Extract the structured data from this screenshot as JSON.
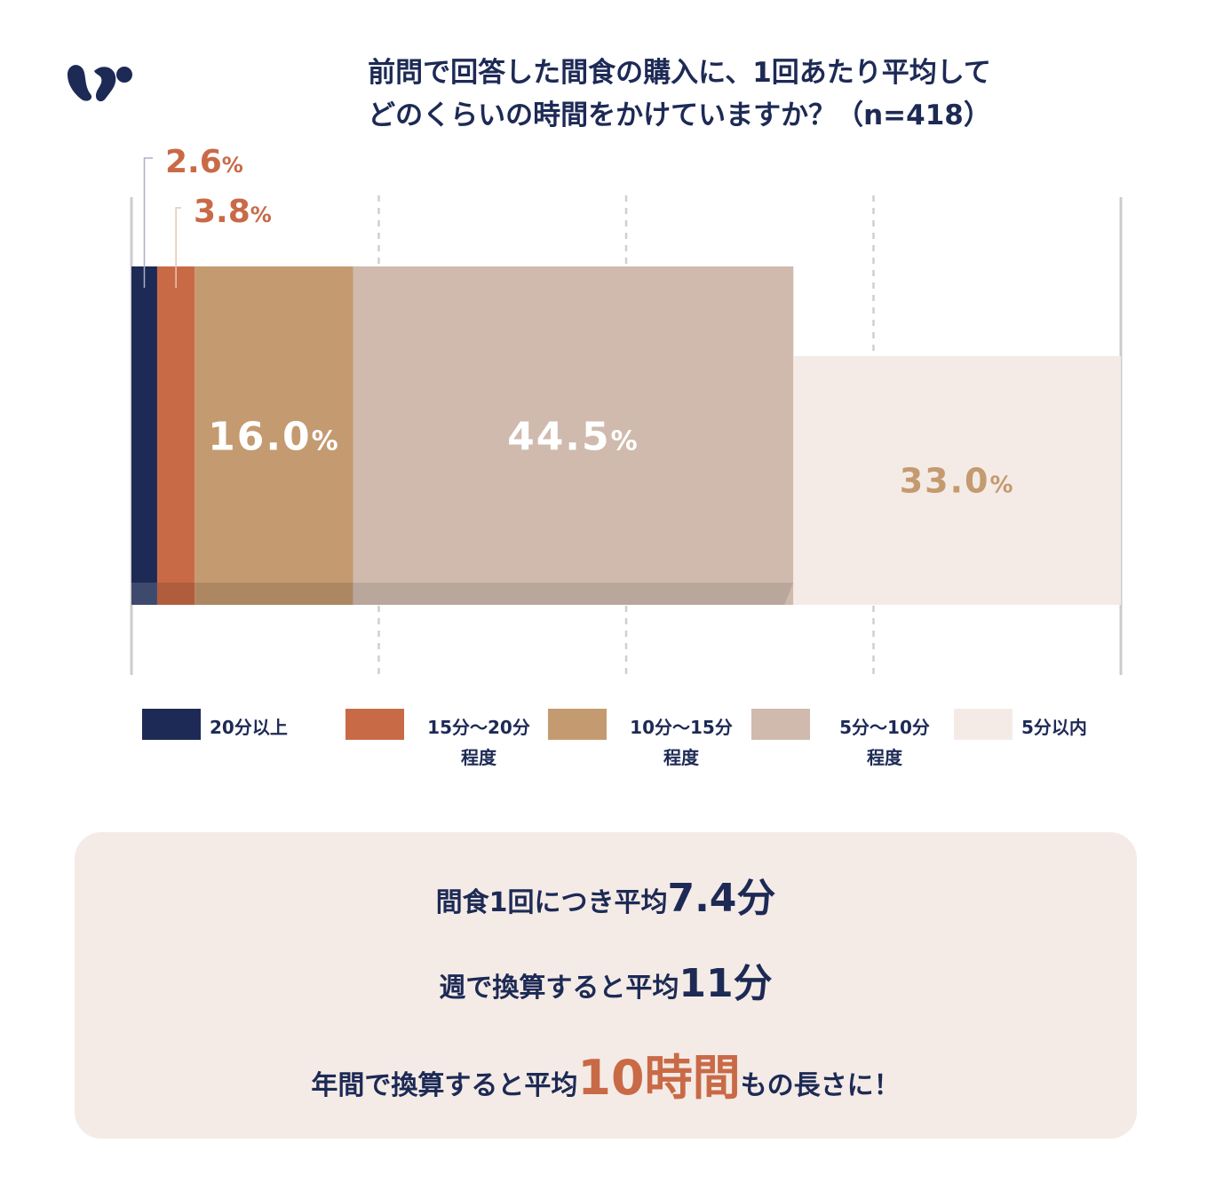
{
  "title": {
    "line1": "前問で回答した間食の購入に、1回あたり平均して",
    "line2": "どのくらいの時間をかけていますか？（n=418）"
  },
  "chart_data": {
    "type": "bar",
    "orientation": "horizontal-stacked",
    "xlim": [
      0,
      100
    ],
    "grid": true,
    "legend_placement": "bottom",
    "categories": [
      "20分以上",
      "15分〜20分\n程度",
      "10分〜15分\n程度",
      "5分〜10分\n程度",
      "5分以内"
    ],
    "values": [
      2.6,
      3.8,
      16.0,
      44.5,
      33.0
    ],
    "data_labels": [
      "2.6%",
      "3.8%",
      "16.0%",
      "44.5%",
      "33.0%"
    ],
    "colors": [
      "#1d2a55",
      "#c96a47",
      "#c49a70",
      "#cfbaad",
      "#f4ebe6"
    ]
  },
  "summary": {
    "line1_prefix": "間食1回につき平均",
    "line1_value": "7.4分",
    "line2_prefix": "週で換算すると平均",
    "line2_value": "11分",
    "line3_prefix": "年間で換算すると平均",
    "line3_value": "10時間",
    "line3_suffix": "もの長さに！"
  },
  "colors": {
    "navy": "#1d2a55",
    "accent": "#c96a47",
    "summary_bg": "#f4ebe6"
  },
  "logo_icon": "squirrel-logo-icon"
}
